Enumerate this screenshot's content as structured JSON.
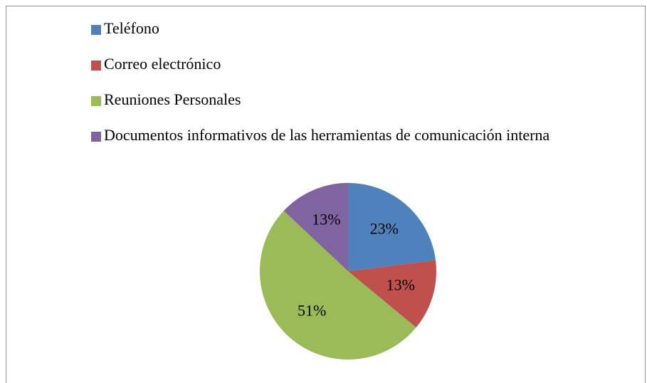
{
  "chart_data": {
    "type": "pie",
    "categories": [
      "Teléfono",
      "Correo electrónico",
      "Reuniones Personales",
      "Documentos informativos de las herramientas de comunicación interna"
    ],
    "values": [
      23,
      13,
      51,
      13
    ],
    "value_labels": [
      "23%",
      "13%",
      "51%",
      "13%"
    ],
    "colors": [
      "#4f81bd",
      "#c0504d",
      "#9bbb59",
      "#8064a2"
    ],
    "legend": "top"
  }
}
